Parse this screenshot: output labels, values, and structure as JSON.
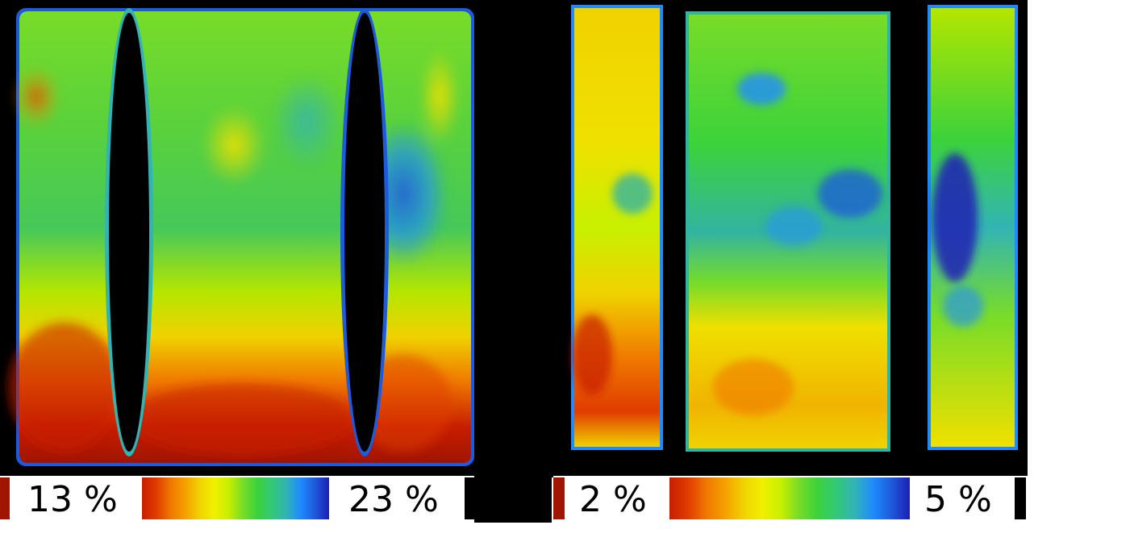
{
  "palette": {
    "background": "#000000",
    "hole": "#000000",
    "dark_red": "#a01400",
    "red": "#e02000",
    "orange": "#f07800",
    "yellow": "#f0e000",
    "yellow_green": "#b4e600",
    "green": "#3cd23c",
    "teal": "#32b4a0",
    "blue": "#1e78ff",
    "dark_blue": "#1e1eb4",
    "gradient": [
      "#c81e00",
      "#e03c00",
      "#f07800",
      "#f5a000",
      "#f0d200",
      "#f0f000",
      "#c8f000",
      "#78dc28",
      "#3cd23c",
      "#32c878",
      "#32b4b4",
      "#1e8cff",
      "#1e5adc",
      "#1e1eb4"
    ]
  },
  "left_panel": {
    "legend": {
      "min_label": "13 %",
      "max_label": "23 %",
      "min_swatch_color": "#a01400",
      "max_swatch_color": "#000000"
    }
  },
  "right_panel": {
    "legend": {
      "min_label": "2 %",
      "max_label": "5 %",
      "min_swatch_color": "#a01400",
      "max_swatch_color": "#000000"
    }
  }
}
